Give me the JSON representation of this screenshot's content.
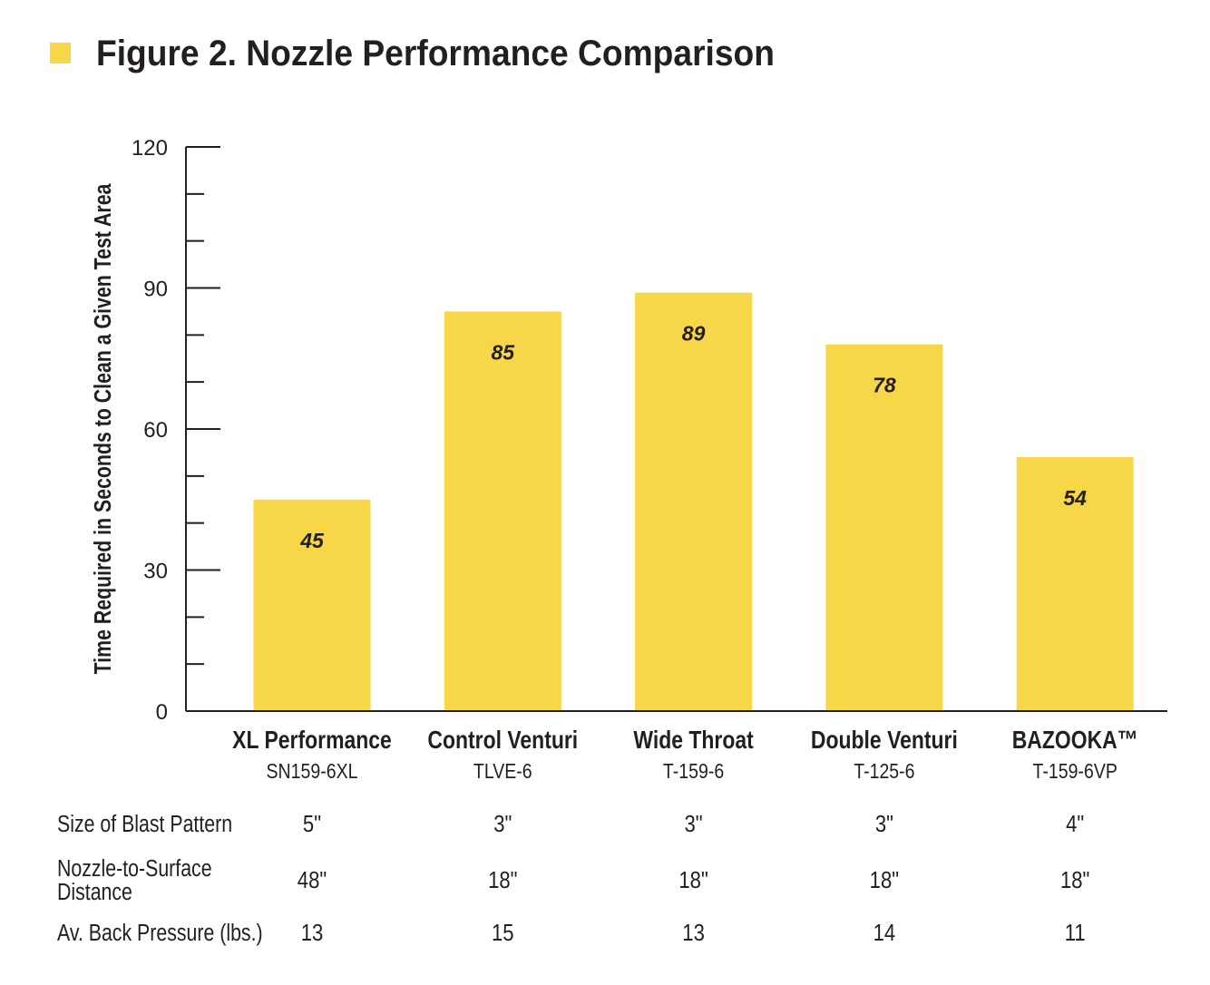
{
  "colors": {
    "bar": "#F7D648",
    "text": "#231F20",
    "axis": "#231F20"
  },
  "chart_data": {
    "type": "bar",
    "title": "Figure 2. Nozzle Performance Comparison",
    "ylabel": "Time Required in Seconds to Clean a Given Test Area",
    "xlabel": "",
    "ylim": [
      0,
      120
    ],
    "yticks": [
      0,
      30,
      60,
      90,
      120
    ],
    "minor_tick_step": 10,
    "grid": false,
    "categories": [
      "XL Performance",
      "Control Venturi",
      "Wide Throat",
      "Double Venturi",
      "BAZOOKA™"
    ],
    "codes": [
      "SN159-6XL",
      "TLVE-6",
      "T-159-6",
      "T-125-6",
      "T-159-6VP"
    ],
    "values": [
      45,
      85,
      89,
      78,
      54
    ],
    "data_labels": [
      "45",
      "85",
      "89",
      "78",
      "54"
    ]
  },
  "table": {
    "rows": [
      {
        "label": [
          "Size of Blast Pattern"
        ],
        "values": [
          "5\"",
          "3\"",
          "3\"",
          "3\"",
          "4\""
        ]
      },
      {
        "label": [
          "Nozzle-to-Surface",
          "Distance"
        ],
        "values": [
          "48\"",
          "18\"",
          "18\"",
          "18\"",
          "18\""
        ]
      },
      {
        "label": [
          "Av. Back Pressure (lbs.)"
        ],
        "values": [
          "13",
          "15",
          "13",
          "14",
          "11"
        ]
      }
    ]
  }
}
